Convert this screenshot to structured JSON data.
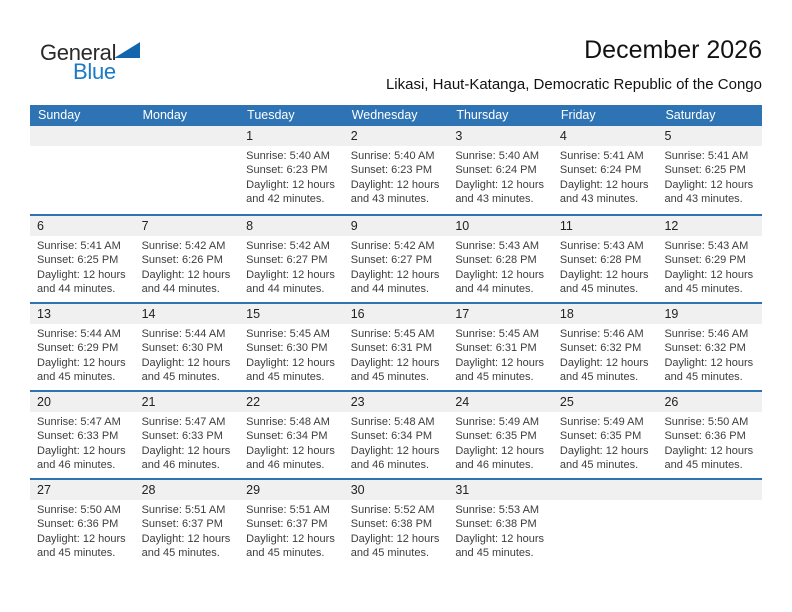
{
  "logo": {
    "part1": "General",
    "part2": "Blue",
    "triangle_color": "#1266ae",
    "blue_color": "#1a7ac5"
  },
  "header": {
    "title": "December 2026",
    "subtitle": "Likasi, Haut-Katanga, Democratic Republic of the Congo"
  },
  "colors": {
    "header_bar": "#2e74b5",
    "number_band": "#f0f0f0",
    "separator": "#2e74b5"
  },
  "calendar": {
    "day_headers": [
      "Sunday",
      "Monday",
      "Tuesday",
      "Wednesday",
      "Thursday",
      "Friday",
      "Saturday"
    ],
    "labels": {
      "sunrise": "Sunrise:",
      "sunset": "Sunset:",
      "daylight": "Daylight:"
    },
    "weeks": [
      [
        {},
        {},
        {
          "day": "1",
          "sunrise": "5:40 AM",
          "sunset": "6:23 PM",
          "daylight": "12 hours and 42 minutes."
        },
        {
          "day": "2",
          "sunrise": "5:40 AM",
          "sunset": "6:23 PM",
          "daylight": "12 hours and 43 minutes."
        },
        {
          "day": "3",
          "sunrise": "5:40 AM",
          "sunset": "6:24 PM",
          "daylight": "12 hours and 43 minutes."
        },
        {
          "day": "4",
          "sunrise": "5:41 AM",
          "sunset": "6:24 PM",
          "daylight": "12 hours and 43 minutes."
        },
        {
          "day": "5",
          "sunrise": "5:41 AM",
          "sunset": "6:25 PM",
          "daylight": "12 hours and 43 minutes."
        }
      ],
      [
        {
          "day": "6",
          "sunrise": "5:41 AM",
          "sunset": "6:25 PM",
          "daylight": "12 hours and 44 minutes."
        },
        {
          "day": "7",
          "sunrise": "5:42 AM",
          "sunset": "6:26 PM",
          "daylight": "12 hours and 44 minutes."
        },
        {
          "day": "8",
          "sunrise": "5:42 AM",
          "sunset": "6:27 PM",
          "daylight": "12 hours and 44 minutes."
        },
        {
          "day": "9",
          "sunrise": "5:42 AM",
          "sunset": "6:27 PM",
          "daylight": "12 hours and 44 minutes."
        },
        {
          "day": "10",
          "sunrise": "5:43 AM",
          "sunset": "6:28 PM",
          "daylight": "12 hours and 44 minutes."
        },
        {
          "day": "11",
          "sunrise": "5:43 AM",
          "sunset": "6:28 PM",
          "daylight": "12 hours and 45 minutes."
        },
        {
          "day": "12",
          "sunrise": "5:43 AM",
          "sunset": "6:29 PM",
          "daylight": "12 hours and 45 minutes."
        }
      ],
      [
        {
          "day": "13",
          "sunrise": "5:44 AM",
          "sunset": "6:29 PM",
          "daylight": "12 hours and 45 minutes."
        },
        {
          "day": "14",
          "sunrise": "5:44 AM",
          "sunset": "6:30 PM",
          "daylight": "12 hours and 45 minutes."
        },
        {
          "day": "15",
          "sunrise": "5:45 AM",
          "sunset": "6:30 PM",
          "daylight": "12 hours and 45 minutes."
        },
        {
          "day": "16",
          "sunrise": "5:45 AM",
          "sunset": "6:31 PM",
          "daylight": "12 hours and 45 minutes."
        },
        {
          "day": "17",
          "sunrise": "5:45 AM",
          "sunset": "6:31 PM",
          "daylight": "12 hours and 45 minutes."
        },
        {
          "day": "18",
          "sunrise": "5:46 AM",
          "sunset": "6:32 PM",
          "daylight": "12 hours and 45 minutes."
        },
        {
          "day": "19",
          "sunrise": "5:46 AM",
          "sunset": "6:32 PM",
          "daylight": "12 hours and 45 minutes."
        }
      ],
      [
        {
          "day": "20",
          "sunrise": "5:47 AM",
          "sunset": "6:33 PM",
          "daylight": "12 hours and 46 minutes."
        },
        {
          "day": "21",
          "sunrise": "5:47 AM",
          "sunset": "6:33 PM",
          "daylight": "12 hours and 46 minutes."
        },
        {
          "day": "22",
          "sunrise": "5:48 AM",
          "sunset": "6:34 PM",
          "daylight": "12 hours and 46 minutes."
        },
        {
          "day": "23",
          "sunrise": "5:48 AM",
          "sunset": "6:34 PM",
          "daylight": "12 hours and 46 minutes."
        },
        {
          "day": "24",
          "sunrise": "5:49 AM",
          "sunset": "6:35 PM",
          "daylight": "12 hours and 46 minutes."
        },
        {
          "day": "25",
          "sunrise": "5:49 AM",
          "sunset": "6:35 PM",
          "daylight": "12 hours and 45 minutes."
        },
        {
          "day": "26",
          "sunrise": "5:50 AM",
          "sunset": "6:36 PM",
          "daylight": "12 hours and 45 minutes."
        }
      ],
      [
        {
          "day": "27",
          "sunrise": "5:50 AM",
          "sunset": "6:36 PM",
          "daylight": "12 hours and 45 minutes."
        },
        {
          "day": "28",
          "sunrise": "5:51 AM",
          "sunset": "6:37 PM",
          "daylight": "12 hours and 45 minutes."
        },
        {
          "day": "29",
          "sunrise": "5:51 AM",
          "sunset": "6:37 PM",
          "daylight": "12 hours and 45 minutes."
        },
        {
          "day": "30",
          "sunrise": "5:52 AM",
          "sunset": "6:38 PM",
          "daylight": "12 hours and 45 minutes."
        },
        {
          "day": "31",
          "sunrise": "5:53 AM",
          "sunset": "6:38 PM",
          "daylight": "12 hours and 45 minutes."
        },
        {},
        {}
      ]
    ]
  }
}
